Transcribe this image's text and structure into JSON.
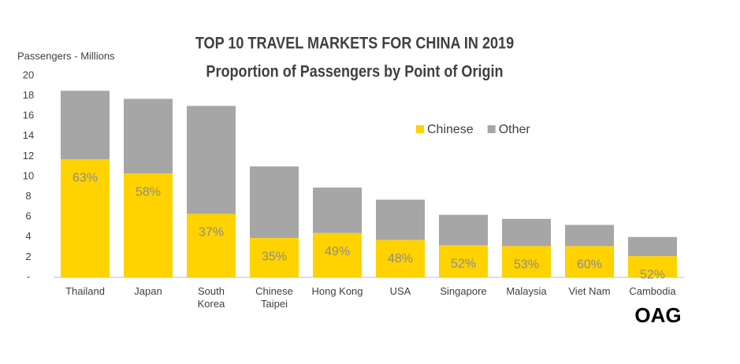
{
  "chart_data": {
    "type": "stacked_bar",
    "title": "TOP 10 TRAVEL MARKETS FOR CHINA IN 2019",
    "subtitle": "Proportion of Passengers by Point of Origin",
    "y_label": "Passengers - Millions",
    "logo": "OAG",
    "categories": [
      "Thailand",
      "Japan",
      "South Korea",
      "Chinese Taipei",
      "Hong Kong",
      "USA",
      "Singapore",
      "Malaysia",
      "Viet Nam",
      "Cambodia"
    ],
    "series": [
      {
        "name": "Chinese",
        "color": "#ffd200",
        "values": [
          11.7,
          10.3,
          6.3,
          3.9,
          4.4,
          3.7,
          3.2,
          3.1,
          3.1,
          2.1
        ],
        "labels": [
          "63%",
          "58%",
          "37%",
          "35%",
          "49%",
          "48%",
          "52%",
          "53%",
          "60%",
          "52%"
        ]
      },
      {
        "name": "Other",
        "color": "#a6a6a6",
        "values": [
          6.8,
          7.4,
          10.7,
          7.1,
          4.5,
          4.0,
          3.0,
          2.7,
          2.1,
          1.9
        ]
      }
    ],
    "ylim": [
      0,
      20
    ],
    "yticks": [
      {
        "value": 0,
        "label": "-"
      },
      2,
      4,
      6,
      8,
      10,
      12,
      14,
      16,
      18,
      20
    ],
    "legend": "top-right"
  }
}
